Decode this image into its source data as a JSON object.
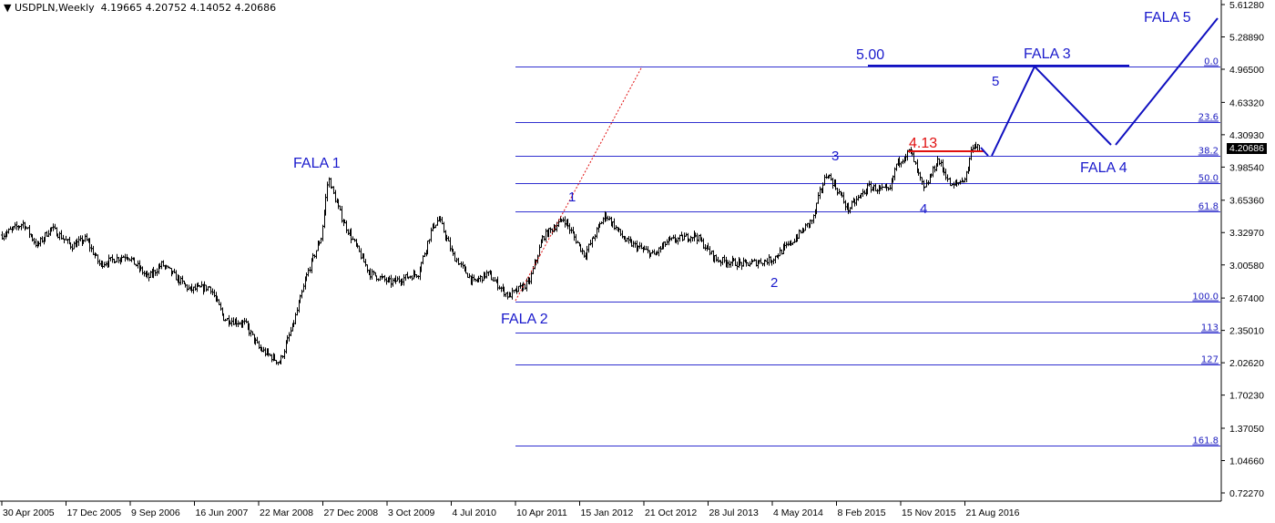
{
  "header": {
    "symbol": "USDPLN,Weekly",
    "ohlc": "4.19665 4.20752 4.14052 4.20686"
  },
  "current_price": "4.20686",
  "annotations": {
    "fala1": "FALA 1",
    "fala2": "FALA 2",
    "fala3": "FALA 3",
    "fala4": "FALA 4",
    "fala5": "FALA 5",
    "w1": "1",
    "w2": "2",
    "w3": "3",
    "w4": "4",
    "w5": "5",
    "level_413": "4.13",
    "level_500": "5.00"
  },
  "colors": {
    "bars": "#000000",
    "fib": "#3030d0",
    "projection": "#1010c0",
    "resistance": "#e01010",
    "background": "#ffffff"
  },
  "chart_data": {
    "type": "ohlc-bar",
    "symbol": "USDPLN",
    "timeframe": "Weekly",
    "ylim": [
      0.7227,
      5.6128
    ],
    "y_ticks": [
      "5.61280",
      "5.28890",
      "4.96500",
      "4.63320",
      "4.30930",
      "3.98540",
      "3.65360",
      "3.32970",
      "3.00580",
      "2.67400",
      "2.35010",
      "2.02620",
      "1.70230",
      "1.37050",
      "1.04660",
      "0.72270"
    ],
    "x_ticks": [
      "30 Apr 2005",
      "17 Dec 2005",
      "9 Sep 2006",
      "16 Jun 2007",
      "22 Mar 2008",
      "27 Dec 2008",
      "3 Oct 2009",
      "4 Jul 2010",
      "10 Apr 2011",
      "15 Jan 2012",
      "21 Oct 2012",
      "28 Jul 2013",
      "4 May 2014",
      "8 Feb 2015",
      "15 Nov 2015",
      "21 Aug 2016"
    ],
    "price_path": [
      [
        "2005-05",
        3.305
      ],
      [
        "2005-08",
        3.423
      ],
      [
        "2005-10",
        3.195
      ],
      [
        "2005-12",
        3.378
      ],
      [
        "2006-03",
        3.195
      ],
      [
        "2006-05",
        3.268
      ],
      [
        "2006-07",
        3.013
      ],
      [
        "2006-11",
        3.104
      ],
      [
        "2007-02",
        2.876
      ],
      [
        "2007-04",
        3.013
      ],
      [
        "2007-08",
        2.757
      ],
      [
        "2007-11",
        2.785
      ],
      [
        "2008-01",
        2.465
      ],
      [
        "2008-04",
        2.42
      ],
      [
        "2008-06",
        2.173
      ],
      [
        "2008-09",
        2.027
      ],
      [
        "2008-11",
        2.42
      ],
      [
        "2009-01",
        2.922
      ],
      [
        "2009-03",
        3.287
      ],
      [
        "2009-04",
        3.879
      ],
      [
        "2009-06",
        3.469
      ],
      [
        "2009-08",
        3.195
      ],
      [
        "2009-10",
        2.922
      ],
      [
        "2010-01",
        2.83
      ],
      [
        "2010-05",
        2.922
      ],
      [
        "2010-07",
        3.378
      ],
      [
        "2010-08",
        3.469
      ],
      [
        "2010-10",
        3.104
      ],
      [
        "2011-01",
        2.83
      ],
      [
        "2011-03",
        2.922
      ],
      [
        "2011-06",
        2.693
      ],
      [
        "2011-09",
        2.83
      ],
      [
        "2011-11",
        3.287
      ],
      [
        "2012-02",
        3.469
      ],
      [
        "2012-05",
        3.104
      ],
      [
        "2012-08",
        3.514
      ],
      [
        "2012-11",
        3.241
      ],
      [
        "2013-03",
        3.104
      ],
      [
        "2013-05",
        3.241
      ],
      [
        "2013-09",
        3.305
      ],
      [
        "2013-12",
        3.058
      ],
      [
        "2014-04",
        3.013
      ],
      [
        "2014-08",
        3.058
      ],
      [
        "2014-11",
        3.241
      ],
      [
        "2015-02",
        3.469
      ],
      [
        "2015-03",
        3.743
      ],
      [
        "2015-04",
        3.925
      ],
      [
        "2015-06",
        3.697
      ],
      [
        "2015-07",
        3.56
      ],
      [
        "2015-10",
        3.788
      ],
      [
        "2016-01",
        3.743
      ],
      [
        "2016-02",
        4.016
      ],
      [
        "2016-04",
        4.153
      ],
      [
        "2016-06",
        3.743
      ],
      [
        "2016-08",
        4.062
      ],
      [
        "2016-10",
        3.788
      ],
      [
        "2016-12",
        3.879
      ],
      [
        "2017-01",
        4.207
      ]
    ],
    "last_bar": {
      "open": 4.19665,
      "high": 4.20752,
      "low": 4.14052,
      "close": 4.20686
    },
    "fibonacci": [
      {
        "label": "0.0",
        "price": 4.992
      },
      {
        "label": "23.6",
        "price": 4.436
      },
      {
        "label": "38.2",
        "price": 4.098
      },
      {
        "label": "50.0",
        "price": 3.825
      },
      {
        "label": "61.8",
        "price": 3.542
      },
      {
        "label": "100.0",
        "price": 2.639
      },
      {
        "label": "113",
        "price": 2.329
      },
      {
        "label": "127",
        "price": 2.009
      },
      {
        "label": "161.8",
        "price": 1.197
      }
    ],
    "resistance_levels": [
      4.13,
      5.0
    ],
    "grid": false
  }
}
